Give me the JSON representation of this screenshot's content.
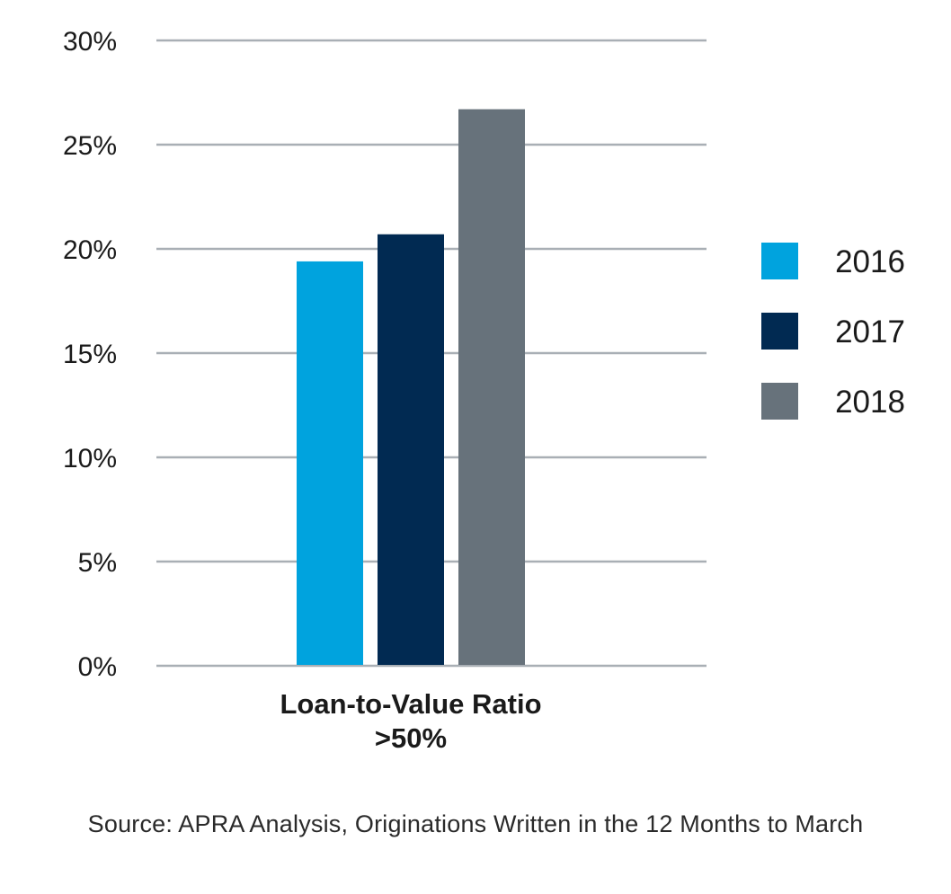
{
  "chart_data": {
    "type": "bar",
    "categories": [
      "Loan-to-Value Ratio >50%"
    ],
    "category_label_lines": [
      "Loan-to-Value Ratio",
      ">50%"
    ],
    "series": [
      {
        "name": "2016",
        "values": [
          19.4
        ],
        "color": "#00A3DE"
      },
      {
        "name": "2017",
        "values": [
          20.7
        ],
        "color": "#012A52"
      },
      {
        "name": "2018",
        "values": [
          26.7
        ],
        "color": "#67727B"
      }
    ],
    "ylim": [
      0,
      30
    ],
    "yticks": [
      0,
      5,
      10,
      15,
      20,
      25,
      30
    ],
    "ytick_labels": [
      "0%",
      "5%",
      "10%",
      "15%",
      "20%",
      "25%",
      "30%"
    ],
    "grid": true,
    "grid_color": "#A9AFB5",
    "legend_position": "right",
    "title": "",
    "xlabel": "",
    "ylabel": ""
  },
  "source_note": "Source: APRA Analysis, Originations Written in the 12 Months to March"
}
